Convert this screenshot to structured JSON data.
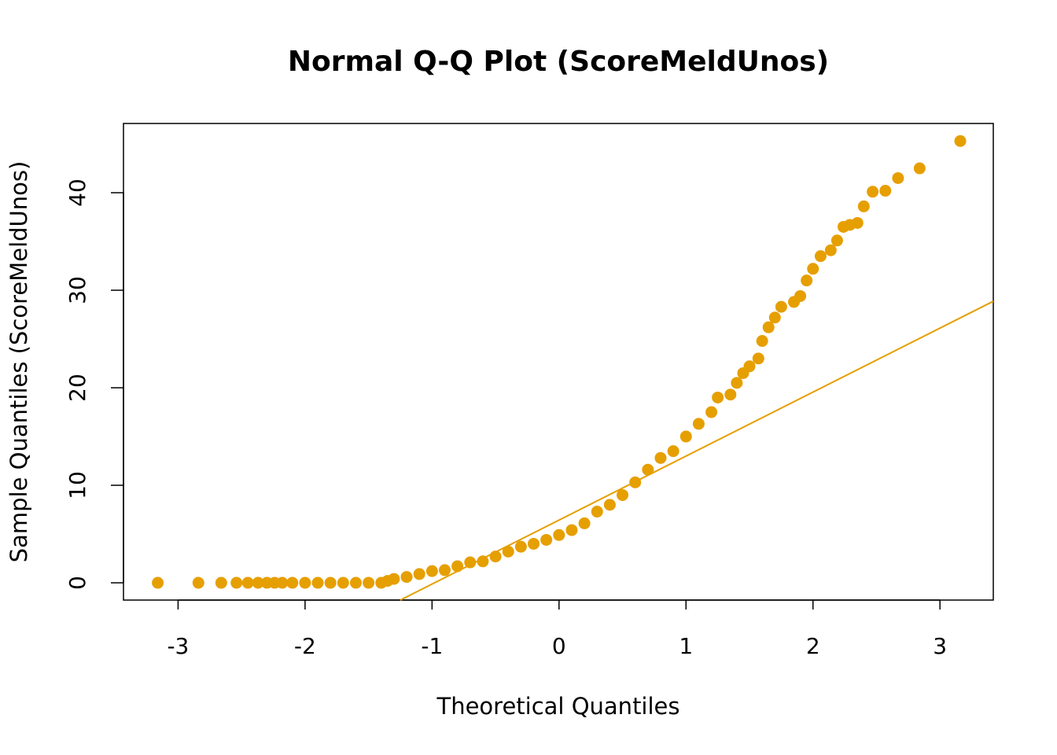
{
  "chart_data": {
    "type": "scatter",
    "title": "Normal Q-Q Plot (ScoreMeldUnos)",
    "x_label": "Theoretical Quantiles",
    "y_label": "Sample Quantiles (ScoreMeldUnos)",
    "color": "#E69F00",
    "x": [
      -3.16,
      -2.84,
      -2.66,
      -2.54,
      -2.45,
      -2.37,
      -2.3,
      -2.24,
      -2.18,
      -2.1,
      -2.0,
      -1.9,
      -1.8,
      -1.7,
      -1.6,
      -1.5,
      -1.4,
      -1.35,
      -1.3,
      -1.2,
      -1.1,
      -1.0,
      -0.9,
      -0.8,
      -0.7,
      -0.6,
      -0.5,
      -0.4,
      -0.3,
      -0.2,
      -0.1,
      0,
      0.1,
      0.2,
      0.3,
      0.4,
      0.5,
      0.6,
      0.7,
      0.8,
      0.9,
      1.0,
      1.1,
      1.2,
      1.25,
      1.35,
      1.4,
      1.45,
      1.5,
      1.57,
      1.6,
      1.65,
      1.7,
      1.75,
      1.85,
      1.9,
      1.95,
      2.0,
      2.06,
      2.14,
      2.19,
      2.24,
      2.29,
      2.35,
      2.4,
      2.47,
      2.57,
      2.67,
      2.84,
      3.16
    ],
    "values": [
      0,
      0,
      0,
      0,
      0,
      0,
      0,
      0,
      0,
      0,
      0,
      0,
      0,
      0,
      0,
      0,
      0,
      0.2,
      0.4,
      0.6,
      0.9,
      1.2,
      1.3,
      1.7,
      2.1,
      2.2,
      2.7,
      3.2,
      3.7,
      4.0,
      4.4,
      4.9,
      5.4,
      6.1,
      7.3,
      8.0,
      9.0,
      10.3,
      11.6,
      12.8,
      13.5,
      15.0,
      16.3,
      17.5,
      19.0,
      19.3,
      20.5,
      21.5,
      22.2,
      23.0,
      24.8,
      26.2,
      27.2,
      28.3,
      28.8,
      29.4,
      31.0,
      32.2,
      33.5,
      34.1,
      35.1,
      36.5,
      36.7,
      36.9,
      38.6,
      40.1,
      40.2,
      41.5,
      42.5,
      45.3
    ],
    "qq_line": {
      "x": [
        -1.25,
        3.42
      ],
      "y": [
        -1.77,
        28.87
      ]
    },
    "xlim": [
      -3.43,
      3.42
    ],
    "ylim": [
      -1.77,
      47.1
    ],
    "xticks": [
      -3,
      -2,
      -1,
      0,
      1,
      2,
      3
    ],
    "yticks": [
      0,
      10,
      20,
      30,
      40
    ]
  }
}
